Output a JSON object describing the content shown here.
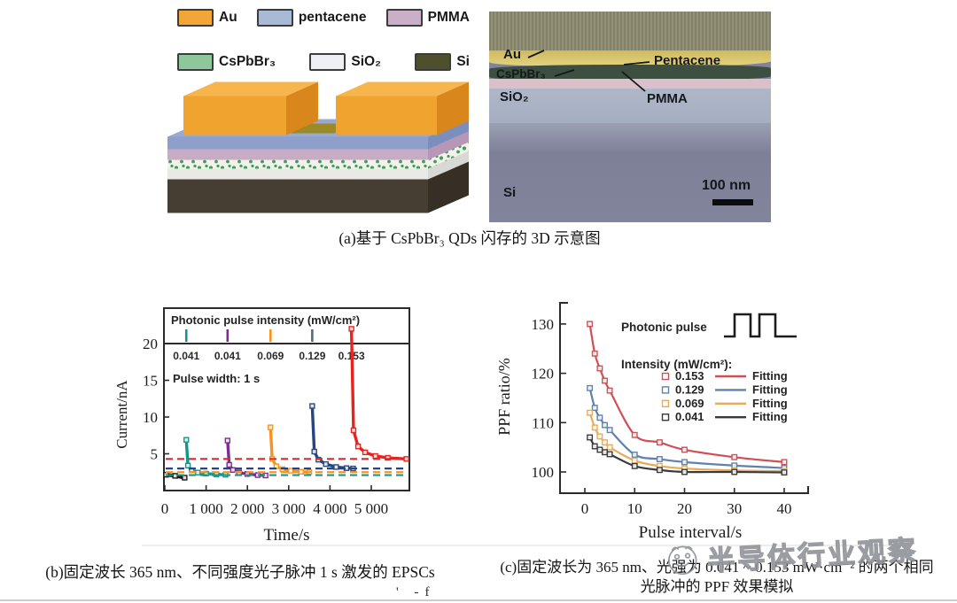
{
  "device_legend": {
    "items": [
      {
        "label": "Au",
        "color": "#f2a637"
      },
      {
        "label": "pentacene",
        "color": "#a9bad7"
      },
      {
        "label": "PMMA",
        "color": "#c9afc8"
      },
      {
        "label": "CsPbBr₃",
        "color": "#8ec79a"
      },
      {
        "label": "SiO₂",
        "color": "#eef0f4"
      },
      {
        "label": "Si",
        "color": "#4e4f2c"
      }
    ]
  },
  "schematic": {
    "au_front": "#f0a32f",
    "au_top": "#f6b54d",
    "au_side": "#d9871c",
    "pen_front": "#8da0cb",
    "pen_top": "#98a9d2",
    "pen_side": "#7b8fbe",
    "pmma_front": "#c8abc5",
    "pmma_top": "#d4b9d1",
    "pmma_side": "#b897b6",
    "qd_dot": "#3f9e57",
    "qd_bg": "#f2f1ec",
    "sio2_front": "#e9eae6",
    "sio2_top": "#f2f2ee",
    "sio2_side": "#d8d9d4",
    "si_front": "#463e33",
    "si_top": "#544a3d",
    "si_side": "#352f26",
    "channel": "#9c8a26"
  },
  "sem": {
    "labels": {
      "au": "Au",
      "pentacene": "Pentacene",
      "cspbbr3": "CsPbBr₃",
      "pmma": "PMMA",
      "sio2": "SiO₂",
      "si": "Si"
    },
    "scale_bar": "100 nm",
    "layer_colors": {
      "epoxy": "#8d8b6f",
      "gold": "#d9c66f",
      "pentacene": "#3c4f41",
      "pmma_pink": "#d9c0c9",
      "sio2": "#a9b1c4",
      "si": "#82849b"
    }
  },
  "captions": {
    "a": "(a)基于 CsPbBr₃ QDs 闪存的 3D 示意图",
    "b": "(b)固定波长 365 nm、不同强度光子脉冲 1 s 激发的 EPSCs",
    "c_line1": "(c)固定波长为 365 nm、光强为 0.041 ~ 0.153 mW·cm⁻² 的两个相同",
    "c_line2": "光脉冲的 PPF 效果模拟",
    "fragment": "' -f"
  },
  "watermark": {
    "text": "半导体行业观察"
  },
  "chart_data": [
    {
      "type": "line",
      "panel_title": "Photonic pulse intensity (mW/cm²)",
      "annotation": "Pulse width: 1 s",
      "xlabel": "Time/s",
      "ylabel": "Current/nA",
      "xlim": [
        0,
        5900
      ],
      "ylim": [
        0,
        20
      ],
      "xticks": [
        {
          "v": 0,
          "label": "0"
        },
        {
          "v": 1000,
          "label": "1 000"
        },
        {
          "v": 2000,
          "label": "2 000"
        },
        {
          "v": 3000,
          "label": "3 000"
        },
        {
          "v": 4000,
          "label": "4 000"
        },
        {
          "v": 5000,
          "label": "5 000"
        }
      ],
      "yticks": [
        0,
        5,
        10,
        15,
        20
      ],
      "pulse_markers": [
        {
          "x": 520,
          "label": "0.041",
          "color": "#17958b"
        },
        {
          "x": 1520,
          "label": "0.041",
          "color": "#7b2d90"
        },
        {
          "x": 2560,
          "label": "0.069",
          "color": "#f79420"
        },
        {
          "x": 3570,
          "label": "0.129",
          "color": "#566a7e"
        },
        {
          "x": 4520,
          "label": "0.153",
          "color": "#e8231d"
        }
      ],
      "series": [
        {
          "name": "baseline",
          "color": "#1a1a1a",
          "width": 4,
          "points": [
            [
              30,
              2.15
            ],
            [
              250,
              2.0
            ],
            [
              480,
              1.75
            ]
          ]
        },
        {
          "name": "0.041 (1st)",
          "color": "#17958b",
          "points": [
            [
              520,
              6.9
            ],
            [
              560,
              3.4
            ],
            [
              650,
              2.75
            ],
            [
              800,
              2.45
            ],
            [
              1000,
              2.3
            ],
            [
              1250,
              2.2
            ],
            [
              1470,
              2.15
            ]
          ]
        },
        {
          "name": "0.041 (2nd)",
          "color": "#7b2d90",
          "points": [
            [
              1520,
              6.8
            ],
            [
              1560,
              3.5
            ],
            [
              1650,
              2.8
            ],
            [
              1800,
              2.45
            ],
            [
              2000,
              2.25
            ],
            [
              2250,
              2.1
            ],
            [
              2440,
              2.05
            ]
          ]
        },
        {
          "name": "0.069",
          "color": "#f79420",
          "points": [
            [
              2560,
              8.6
            ],
            [
              2600,
              4.3
            ],
            [
              2700,
              3.3
            ],
            [
              2850,
              2.9
            ],
            [
              3050,
              2.7
            ],
            [
              3300,
              2.55
            ],
            [
              3500,
              2.5
            ]
          ]
        },
        {
          "name": "0.129",
          "color": "#27467f",
          "points": [
            [
              3570,
              11.5
            ],
            [
              3620,
              5.3
            ],
            [
              3720,
              4.2
            ],
            [
              3900,
              3.6
            ],
            [
              4150,
              3.2
            ],
            [
              4400,
              3.05
            ],
            [
              4560,
              3.0
            ]
          ]
        },
        {
          "name": "0.153",
          "color": "#e8231d",
          "points": [
            [
              4520,
              22
            ],
            [
              4570,
              8.2
            ],
            [
              4680,
              6.0
            ],
            [
              4850,
              5.2
            ],
            [
              5100,
              4.7
            ],
            [
              5400,
              4.45
            ],
            [
              5850,
              4.3
            ]
          ]
        }
      ],
      "dashed_lines": [
        {
          "y": 4.3,
          "color": "#d92b2b"
        },
        {
          "y": 3.0,
          "color": "#27467f"
        },
        {
          "y": 2.5,
          "color": "#f79420"
        },
        {
          "y": 2.1,
          "color": "#17958b"
        }
      ]
    },
    {
      "type": "scatter",
      "xlabel": "Pulse interval/s",
      "ylabel": "PPF ratio/%",
      "xlim": [
        -5,
        44
      ],
      "ylim": [
        96,
        134
      ],
      "xticks": [
        0,
        10,
        20,
        30,
        40
      ],
      "yticks": [
        100,
        110,
        120,
        130
      ],
      "legend_title": "Photonic pulse",
      "intensity_label": "Intensity (mW/cm²):",
      "fitting_label": "Fitting",
      "x": [
        1,
        2,
        3,
        4,
        5,
        10,
        15,
        20,
        30,
        40
      ],
      "series": [
        {
          "name": "0.153",
          "color": "#cf4f55",
          "y": [
            130,
            124,
            121,
            118.5,
            116.5,
            107.5,
            106,
            104.5,
            103,
            102
          ]
        },
        {
          "name": "0.129",
          "color": "#5e81ad",
          "y": [
            117,
            113,
            111,
            109.5,
            108.5,
            103.5,
            102.6,
            102,
            101.3,
            100.8
          ]
        },
        {
          "name": "0.069",
          "color": "#e9ab57",
          "y": [
            112,
            109,
            107.2,
            106,
            105,
            102.3,
            101.2,
            100.7,
            100.3,
            100.2
          ]
        },
        {
          "name": "0.041",
          "color": "#3a3a3a",
          "y": [
            107,
            105.2,
            104.5,
            104,
            103.6,
            101.2,
            100.4,
            100,
            100,
            99.9
          ]
        }
      ]
    }
  ]
}
